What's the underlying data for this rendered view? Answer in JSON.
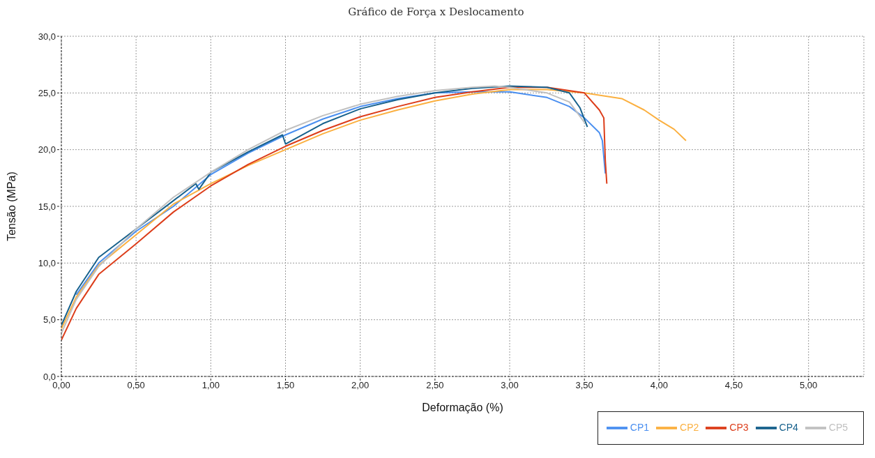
{
  "chart_data": {
    "type": "line",
    "title": "Gráfico de Força x Deslocamento",
    "xlabel": "Deformação (%)",
    "ylabel": "Tensão (MPa)",
    "xlim": [
      0,
      5.37
    ],
    "ylim": [
      0,
      30
    ],
    "xticks": [
      {
        "value": 0,
        "label": "0,00"
      },
      {
        "value": 0.5,
        "label": "0,50"
      },
      {
        "value": 1,
        "label": "1,00"
      },
      {
        "value": 1.5,
        "label": "1,50"
      },
      {
        "value": 2,
        "label": "2,00"
      },
      {
        "value": 2.5,
        "label": "2,50"
      },
      {
        "value": 3,
        "label": "3,00"
      },
      {
        "value": 3.5,
        "label": "3,50"
      },
      {
        "value": 4,
        "label": "4,00"
      },
      {
        "value": 4.5,
        "label": "4,50"
      },
      {
        "value": 5,
        "label": "5,00"
      }
    ],
    "yticks": [
      {
        "value": 0,
        "label": "0,0"
      },
      {
        "value": 5,
        "label": "5,0"
      },
      {
        "value": 10,
        "label": "10,0"
      },
      {
        "value": 15,
        "label": "15,0"
      },
      {
        "value": 20,
        "label": "20,0"
      },
      {
        "value": 25,
        "label": "25,0"
      },
      {
        "value": 30,
        "label": "30,0"
      }
    ],
    "grid": true,
    "legend": "bottom right",
    "marker": "none",
    "line_style": "solid",
    "series": [
      {
        "name": "CP1",
        "color": "#4a8ff0",
        "x": [
          0.1,
          0.25,
          0.5,
          0.75,
          1,
          1.25,
          1.5,
          1.75,
          2,
          2.25,
          2.5,
          2.75,
          2.9,
          3,
          3.25,
          3.4,
          3.5,
          3.6,
          3.62,
          3.64
        ],
        "values": [
          7.2,
          10,
          12.8,
          15,
          17.8,
          19.7,
          21.3,
          22.7,
          23.8,
          24.5,
          25,
          25.1,
          25.1,
          25.1,
          24.6,
          23.8,
          22.8,
          21.5,
          20.8,
          17.9
        ]
      },
      {
        "name": "CP2",
        "color": "#fbb040",
        "x": [
          0,
          0.1,
          0.25,
          0.5,
          0.75,
          1,
          1.25,
          1.5,
          1.75,
          2,
          2.25,
          2.5,
          2.75,
          3,
          3.25,
          3.5,
          3.75,
          3.9,
          4,
          4.1,
          4.18
        ],
        "values": [
          4.2,
          7,
          9.8,
          12.5,
          15.2,
          17,
          18.6,
          20,
          21.4,
          22.6,
          23.5,
          24.3,
          24.9,
          25.3,
          25.3,
          25,
          24.5,
          23.5,
          22.6,
          21.8,
          20.8
        ]
      },
      {
        "name": "CP3",
        "color": "#dc3d1a",
        "x": [
          0,
          0.1,
          0.25,
          0.5,
          0.75,
          1,
          1.25,
          1.5,
          1.75,
          2,
          2.25,
          2.5,
          2.75,
          3,
          3.25,
          3.5,
          3.6,
          3.63,
          3.64,
          3.65
        ],
        "values": [
          3.2,
          6,
          9,
          11.7,
          14.5,
          16.8,
          18.7,
          20.3,
          21.7,
          22.9,
          23.8,
          24.6,
          25.1,
          25.5,
          25.5,
          25,
          23.5,
          22.8,
          19,
          17
        ]
      },
      {
        "name": "CP4",
        "color": "#17618c",
        "x": [
          0,
          0.1,
          0.25,
          0.5,
          0.75,
          0.9,
          0.92,
          1,
          1.25,
          1.48,
          1.5,
          1.75,
          2,
          2.25,
          2.5,
          2.75,
          3,
          3.25,
          3.4,
          3.47,
          3.52
        ],
        "values": [
          4.5,
          7.5,
          10.5,
          13,
          15.5,
          17,
          16.5,
          18,
          19.8,
          21.3,
          20.5,
          22.3,
          23.6,
          24.4,
          25,
          25.4,
          25.6,
          25.5,
          25,
          23.7,
          22
        ]
      },
      {
        "name": "CP5",
        "color": "#c0c0c0",
        "x": [
          0,
          0.1,
          0.25,
          0.5,
          0.75,
          1,
          1.25,
          1.5,
          1.75,
          2,
          2.25,
          2.5,
          2.75,
          2.9,
          3,
          3.25,
          3.4,
          3.5
        ],
        "values": [
          3.8,
          6.8,
          9.7,
          13,
          15.8,
          18,
          20,
          21.7,
          23,
          24,
          24.7,
          25.2,
          25.5,
          25.6,
          25.5,
          25,
          24.2,
          22.4
        ]
      }
    ]
  }
}
